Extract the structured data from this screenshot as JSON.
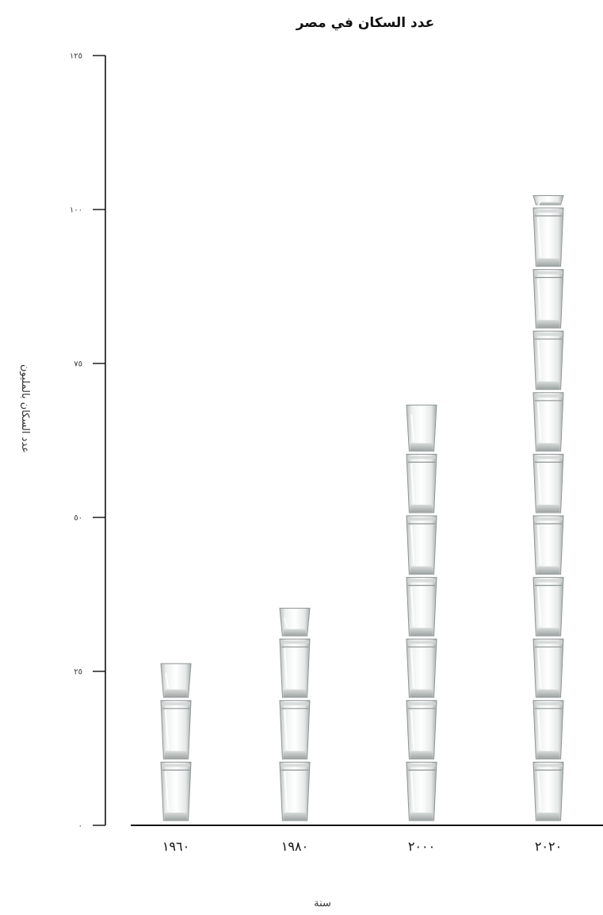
{
  "chart_data": {
    "type": "bar",
    "title": "عدد السكان في مصر",
    "xlabel": "سنة",
    "ylabel": "عدد السكان بالمليون",
    "categories": [
      "١٩٦٠",
      "١٩٨٠",
      "٢٠٠٠",
      "٢٠٢٠"
    ],
    "values": [
      26,
      35,
      68,
      102
    ],
    "unit_per_glass": 10,
    "ylim": [
      0,
      125
    ],
    "yticks": [
      {
        "value": 0,
        "label": "٠"
      },
      {
        "value": 25,
        "label": "٢٥"
      },
      {
        "value": 50,
        "label": "٥٠"
      },
      {
        "value": 75,
        "label": "٧٥"
      },
      {
        "value": 100,
        "label": "١٠٠"
      },
      {
        "value": 125,
        "label": "١٢٥"
      }
    ],
    "grid": false,
    "mark_icon": "water-glass-icon"
  }
}
